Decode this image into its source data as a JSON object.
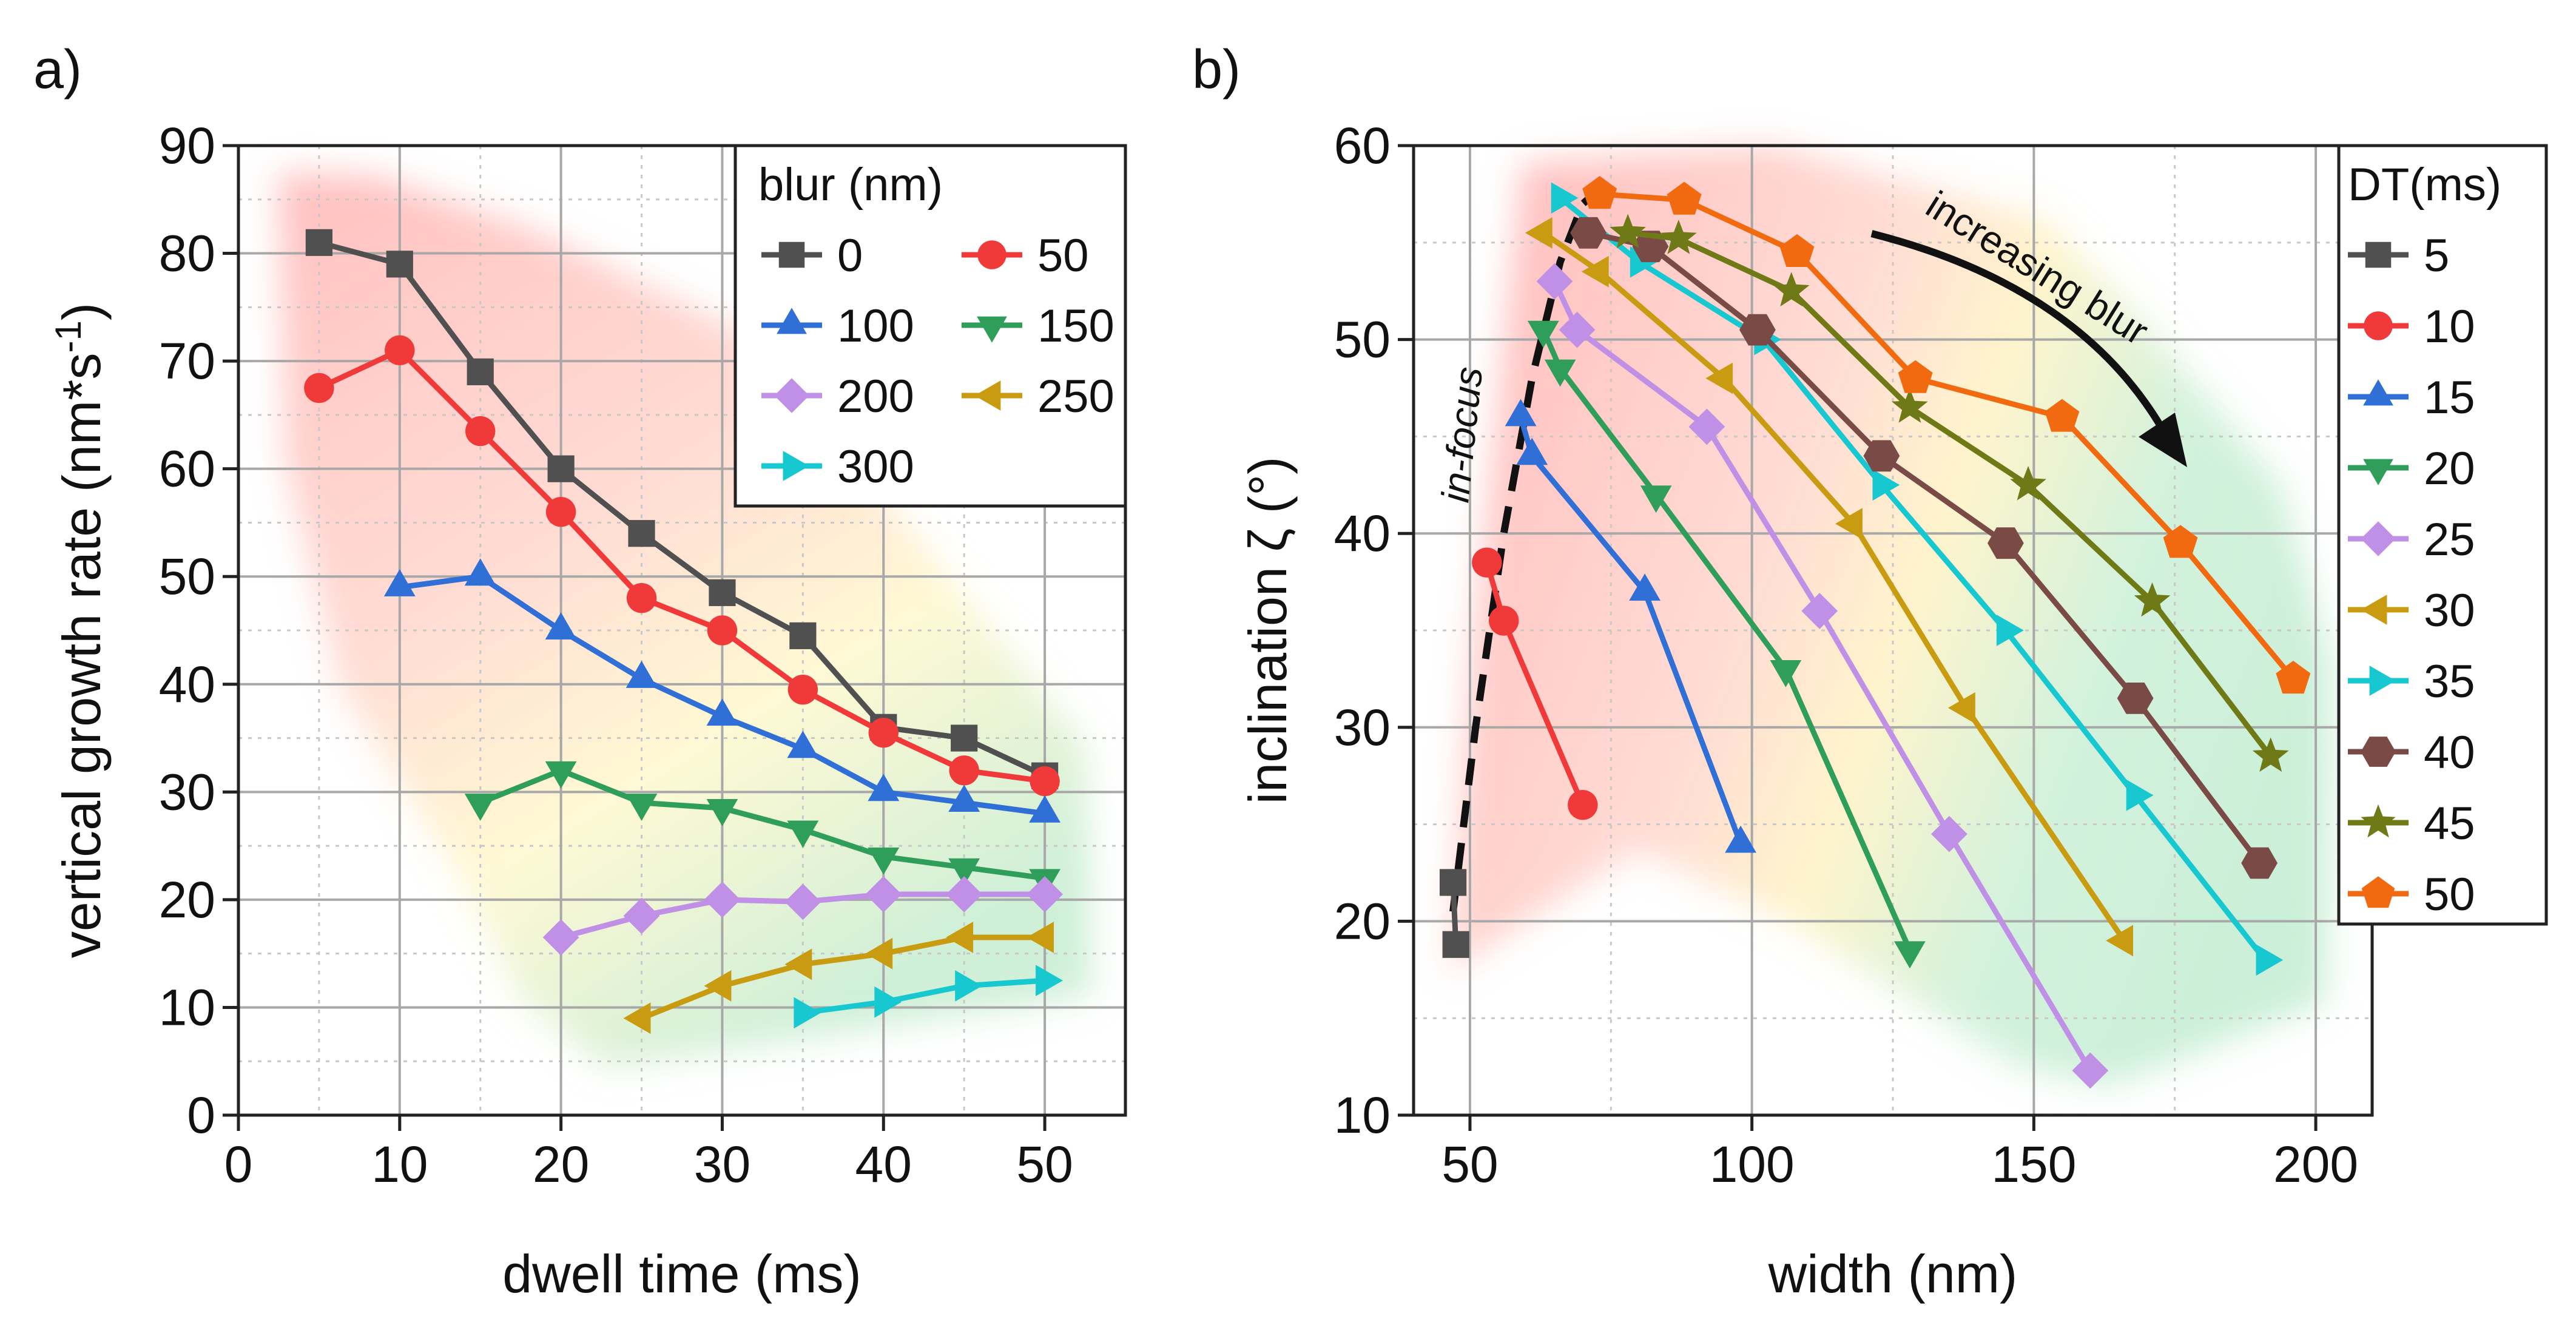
{
  "chart_data": [
    {
      "panel_label": "a)",
      "type": "line",
      "xlabel": "dwell time (ms)",
      "ylabel": "vertical growth rate (nm*s-1)",
      "ylabel_main": "vertical growth rate (nm*s",
      "ylabel_sup": "-1",
      "ylabel_close": ")",
      "xlim": [
        0,
        55
      ],
      "ylim": [
        0,
        90
      ],
      "xticks": [
        "0",
        "10",
        "20",
        "30",
        "40",
        "50"
      ],
      "yticks": [
        "0",
        "10",
        "20",
        "30",
        "40",
        "50",
        "60",
        "70",
        "80",
        "90"
      ],
      "grid": true,
      "legend_title": "blur (nm)",
      "legend_position": "top-right",
      "series": [
        {
          "name": "0",
          "color": "#505050",
          "marker": "square",
          "x": [
            5,
            10,
            15,
            20,
            25,
            30,
            35,
            40,
            45,
            50
          ],
          "y": [
            81,
            79,
            69,
            60,
            54,
            48.5,
            44.5,
            36,
            35,
            31.5
          ]
        },
        {
          "name": "50",
          "color": "#f03a3a",
          "marker": "circle",
          "x": [
            5,
            10,
            15,
            20,
            25,
            30,
            35,
            40,
            45,
            50
          ],
          "y": [
            67.5,
            71,
            63.5,
            56,
            48,
            45,
            39.5,
            35.5,
            32,
            31
          ]
        },
        {
          "name": "100",
          "color": "#2f6fd6",
          "marker": "triangle-up",
          "x": [
            10,
            15,
            20,
            25,
            30,
            35,
            40,
            45,
            50
          ],
          "y": [
            49,
            50,
            45,
            40.5,
            37,
            34,
            30,
            29,
            28
          ]
        },
        {
          "name": "150",
          "color": "#2e9e5a",
          "marker": "triangle-down",
          "x": [
            15,
            20,
            25,
            30,
            35,
            40,
            45,
            50
          ],
          "y": [
            29,
            32,
            29,
            28.5,
            26.5,
            24,
            23,
            22
          ]
        },
        {
          "name": "200",
          "color": "#c08fe6",
          "marker": "diamond",
          "x": [
            20,
            25,
            30,
            35,
            40,
            45,
            50
          ],
          "y": [
            16.5,
            18.5,
            20,
            19.8,
            20.5,
            20.5,
            20.5
          ]
        },
        {
          "name": "250",
          "color": "#c89b10",
          "marker": "triangle-left",
          "x": [
            25,
            30,
            35,
            40,
            45,
            50
          ],
          "y": [
            9,
            12,
            14,
            15,
            16.5,
            16.5
          ]
        },
        {
          "name": "300",
          "color": "#18c8d0",
          "marker": "triangle-right",
          "x": [
            35,
            40,
            45,
            50
          ],
          "y": [
            9.5,
            10.5,
            12,
            12.5
          ]
        }
      ]
    },
    {
      "panel_label": "b)",
      "type": "line",
      "xlabel": "width (nm)",
      "ylabel": "inclination ζ (°)",
      "xlim": [
        40,
        210
      ],
      "ylim": [
        10,
        60
      ],
      "xticks": [
        "50",
        "100",
        "150",
        "200"
      ],
      "yticks": [
        "10",
        "20",
        "30",
        "40",
        "50",
        "60"
      ],
      "grid": true,
      "legend_title": "DT(ms)",
      "legend_position": "outside-right",
      "annotations": [
        "in-focus",
        "increasing blur"
      ],
      "in_focus_curve": {
        "x": [
          47,
          51,
          56,
          61,
          66,
          70,
          74
        ],
        "y": [
          20.5,
          30,
          40,
          48,
          54,
          57,
          58
        ]
      },
      "series": [
        {
          "name": "5",
          "color": "#505050",
          "marker": "square",
          "x": [
            47,
            47.5
          ],
          "y": [
            22,
            18.8
          ]
        },
        {
          "name": "10",
          "color": "#f03a3a",
          "marker": "circle",
          "x": [
            53,
            56,
            70
          ],
          "y": [
            38.5,
            35.5,
            26
          ]
        },
        {
          "name": "15",
          "color": "#2f6fd6",
          "marker": "triangle-up",
          "x": [
            59,
            61,
            81,
            98
          ],
          "y": [
            46,
            44,
            37,
            24
          ]
        },
        {
          "name": "20",
          "color": "#2e9e5a",
          "marker": "triangle-down",
          "x": [
            63,
            66,
            83,
            106,
            128
          ],
          "y": [
            50.5,
            48.5,
            42,
            33,
            18.5
          ]
        },
        {
          "name": "25",
          "color": "#c08fe6",
          "marker": "diamond",
          "x": [
            65,
            69,
            92,
            112,
            135,
            160
          ],
          "y": [
            53,
            50.5,
            45.5,
            36,
            24.5,
            12.3
          ]
        },
        {
          "name": "30",
          "color": "#c89b10",
          "marker": "triangle-left",
          "x": [
            63,
            73,
            95,
            118,
            138,
            166
          ],
          "y": [
            55.5,
            53.5,
            48,
            40.5,
            31,
            19
          ]
        },
        {
          "name": "35",
          "color": "#18c8d0",
          "marker": "triangle-right",
          "x": [
            66,
            80,
            102,
            123,
            145,
            168,
            191
          ],
          "y": [
            57.3,
            54,
            50,
            42.5,
            35,
            26.5,
            18
          ]
        },
        {
          "name": "40",
          "color": "#7a4b46",
          "marker": "hexagon",
          "x": [
            71,
            82,
            101,
            123,
            145,
            168,
            190
          ],
          "y": [
            55.5,
            54.8,
            50.5,
            44,
            39.5,
            31.5,
            23
          ]
        },
        {
          "name": "45",
          "color": "#6f7a16",
          "marker": "star",
          "x": [
            78,
            87,
            107,
            128,
            149,
            171,
            192
          ],
          "y": [
            55.5,
            55.2,
            52.5,
            46.5,
            42.5,
            36.5,
            28.5
          ]
        },
        {
          "name": "50",
          "color": "#f26a10",
          "marker": "pentagon",
          "x": [
            73,
            88,
            108,
            129,
            155,
            176,
            196
          ],
          "y": [
            57.5,
            57.2,
            54.5,
            48,
            46,
            39.5,
            32.5
          ]
        }
      ]
    }
  ]
}
